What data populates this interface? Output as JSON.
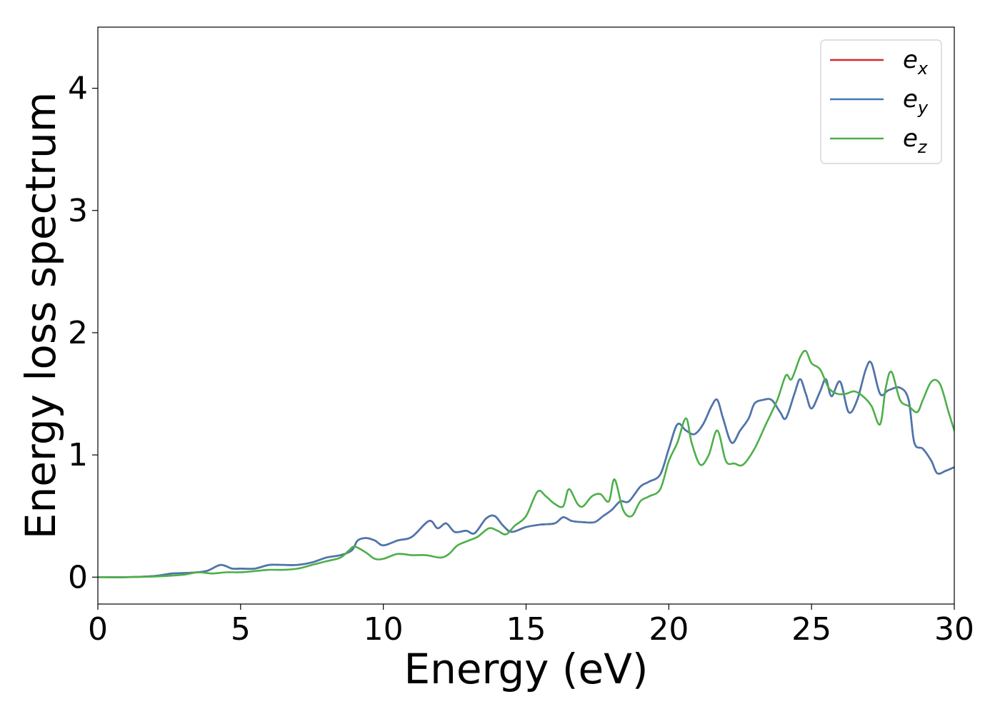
{
  "chart_data": {
    "type": "line",
    "title": "",
    "xlabel": "Energy (eV)",
    "ylabel": "Energy loss spectrum",
    "xlim": [
      0,
      30
    ],
    "ylim": [
      -0.22,
      4.5
    ],
    "xticks": [
      0,
      5,
      10,
      15,
      20,
      25,
      30
    ],
    "yticks": [
      0,
      1,
      2,
      3,
      4
    ],
    "grid": false,
    "legend_position": "top-right",
    "series": [
      {
        "name": "e_x",
        "legend_base": "e",
        "legend_sub": "x",
        "color": "#d62728",
        "x": [
          0,
          1,
          2,
          2.6,
          3.2,
          3.8,
          4.3,
          4.7,
          5,
          5.5,
          6,
          6.5,
          7,
          7.5,
          8,
          8.5,
          8.9,
          9.1,
          9.4,
          9.7,
          10,
          10.5,
          11,
          11.6,
          11.9,
          12.2,
          12.5,
          12.9,
          13.2,
          13.6,
          13.9,
          14.2,
          14.5,
          15,
          15.5,
          16,
          16.3,
          16.6,
          17,
          17.4,
          17.7,
          18,
          18.3,
          18.6,
          19,
          19.3,
          19.7,
          20,
          20.3,
          20.6,
          20.9,
          21.2,
          21.5,
          21.7,
          21.9,
          22.2,
          22.5,
          22.8,
          23,
          23.3,
          23.6,
          23.9,
          24.1,
          24.4,
          24.6,
          24.8,
          25,
          25.3,
          25.5,
          25.7,
          26,
          26.3,
          26.6,
          26.9,
          27.1,
          27.4,
          27.7,
          28.1,
          28.4,
          28.6,
          28.9,
          29.2,
          29.4,
          29.7,
          30
        ],
        "y": [
          0,
          0,
          0.01,
          0.03,
          0.035,
          0.05,
          0.1,
          0.07,
          0.07,
          0.07,
          0.1,
          0.1,
          0.1,
          0.12,
          0.16,
          0.18,
          0.22,
          0.3,
          0.32,
          0.3,
          0.26,
          0.3,
          0.33,
          0.46,
          0.4,
          0.44,
          0.37,
          0.38,
          0.36,
          0.48,
          0.5,
          0.42,
          0.37,
          0.41,
          0.43,
          0.44,
          0.49,
          0.46,
          0.45,
          0.45,
          0.5,
          0.55,
          0.62,
          0.62,
          0.74,
          0.78,
          0.84,
          1.05,
          1.25,
          1.2,
          1.17,
          1.25,
          1.4,
          1.45,
          1.3,
          1.1,
          1.2,
          1.3,
          1.42,
          1.45,
          1.45,
          1.35,
          1.3,
          1.5,
          1.62,
          1.5,
          1.38,
          1.52,
          1.62,
          1.48,
          1.6,
          1.35,
          1.45,
          1.7,
          1.75,
          1.5,
          1.53,
          1.55,
          1.45,
          1.1,
          1.05,
          0.95,
          0.85,
          0.87,
          0.9
        ]
      },
      {
        "name": "e_y",
        "legend_base": "e",
        "legend_sub": "y",
        "color": "#4878b0",
        "x": [
          0,
          1,
          2,
          2.6,
          3.2,
          3.8,
          4.3,
          4.7,
          5,
          5.5,
          6,
          6.5,
          7,
          7.5,
          8,
          8.5,
          8.9,
          9.1,
          9.4,
          9.7,
          10,
          10.5,
          11,
          11.6,
          11.9,
          12.2,
          12.5,
          12.9,
          13.2,
          13.6,
          13.9,
          14.2,
          14.5,
          15,
          15.5,
          16,
          16.3,
          16.6,
          17,
          17.4,
          17.7,
          18,
          18.3,
          18.6,
          19,
          19.3,
          19.7,
          20,
          20.3,
          20.6,
          20.9,
          21.2,
          21.5,
          21.7,
          21.9,
          22.2,
          22.5,
          22.8,
          23,
          23.3,
          23.6,
          23.9,
          24.1,
          24.4,
          24.6,
          24.8,
          25,
          25.3,
          25.5,
          25.7,
          26,
          26.3,
          26.6,
          26.9,
          27.1,
          27.4,
          27.7,
          28.1,
          28.4,
          28.6,
          28.9,
          29.2,
          29.4,
          29.7,
          30
        ],
        "y": [
          0,
          0,
          0.01,
          0.03,
          0.035,
          0.05,
          0.1,
          0.07,
          0.07,
          0.07,
          0.1,
          0.1,
          0.1,
          0.12,
          0.16,
          0.18,
          0.22,
          0.3,
          0.32,
          0.3,
          0.26,
          0.3,
          0.33,
          0.46,
          0.4,
          0.44,
          0.37,
          0.38,
          0.36,
          0.48,
          0.5,
          0.42,
          0.37,
          0.41,
          0.43,
          0.44,
          0.49,
          0.46,
          0.45,
          0.45,
          0.5,
          0.55,
          0.62,
          0.62,
          0.74,
          0.78,
          0.84,
          1.05,
          1.25,
          1.2,
          1.17,
          1.25,
          1.4,
          1.45,
          1.3,
          1.1,
          1.2,
          1.3,
          1.42,
          1.45,
          1.45,
          1.35,
          1.3,
          1.5,
          1.62,
          1.5,
          1.38,
          1.52,
          1.62,
          1.48,
          1.6,
          1.35,
          1.45,
          1.7,
          1.75,
          1.5,
          1.53,
          1.55,
          1.45,
          1.1,
          1.05,
          0.95,
          0.85,
          0.87,
          0.9
        ]
      },
      {
        "name": "e_z",
        "legend_base": "e",
        "legend_sub": "z",
        "color": "#4daf4a",
        "x": [
          0,
          1,
          2,
          3,
          3.5,
          4,
          4.5,
          5,
          5.5,
          6,
          6.5,
          7,
          7.5,
          8,
          8.5,
          8.8,
          9,
          9.4,
          9.7,
          10,
          10.5,
          11,
          11.5,
          12,
          12.3,
          12.6,
          13,
          13.3,
          13.7,
          14,
          14.3,
          14.6,
          15,
          15.4,
          15.7,
          16,
          16.3,
          16.5,
          16.8,
          17,
          17.3,
          17.6,
          17.9,
          18.1,
          18.4,
          18.7,
          19,
          19.3,
          19.7,
          20,
          20.3,
          20.6,
          20.8,
          21.1,
          21.4,
          21.7,
          22,
          22.3,
          22.6,
          23,
          23.4,
          23.8,
          24.1,
          24.3,
          24.6,
          24.8,
          25,
          25.3,
          25.6,
          25.9,
          26.2,
          26.5,
          26.8,
          27.1,
          27.4,
          27.6,
          27.8,
          28.1,
          28.4,
          28.7,
          28.9,
          29.2,
          29.5,
          29.8,
          30
        ],
        "y": [
          0,
          0,
          0.005,
          0.02,
          0.04,
          0.03,
          0.04,
          0.04,
          0.05,
          0.06,
          0.06,
          0.07,
          0.1,
          0.13,
          0.16,
          0.22,
          0.25,
          0.2,
          0.15,
          0.15,
          0.19,
          0.18,
          0.18,
          0.16,
          0.19,
          0.26,
          0.3,
          0.33,
          0.4,
          0.38,
          0.35,
          0.42,
          0.5,
          0.7,
          0.66,
          0.6,
          0.58,
          0.72,
          0.6,
          0.58,
          0.66,
          0.68,
          0.62,
          0.8,
          0.55,
          0.5,
          0.62,
          0.66,
          0.72,
          0.95,
          1.1,
          1.3,
          1.1,
          0.92,
          1.0,
          1.2,
          0.95,
          0.93,
          0.92,
          1.05,
          1.25,
          1.45,
          1.65,
          1.62,
          1.8,
          1.85,
          1.75,
          1.7,
          1.55,
          1.5,
          1.5,
          1.52,
          1.48,
          1.4,
          1.25,
          1.55,
          1.68,
          1.45,
          1.4,
          1.35,
          1.45,
          1.6,
          1.58,
          1.35,
          1.2
        ]
      }
    ]
  }
}
